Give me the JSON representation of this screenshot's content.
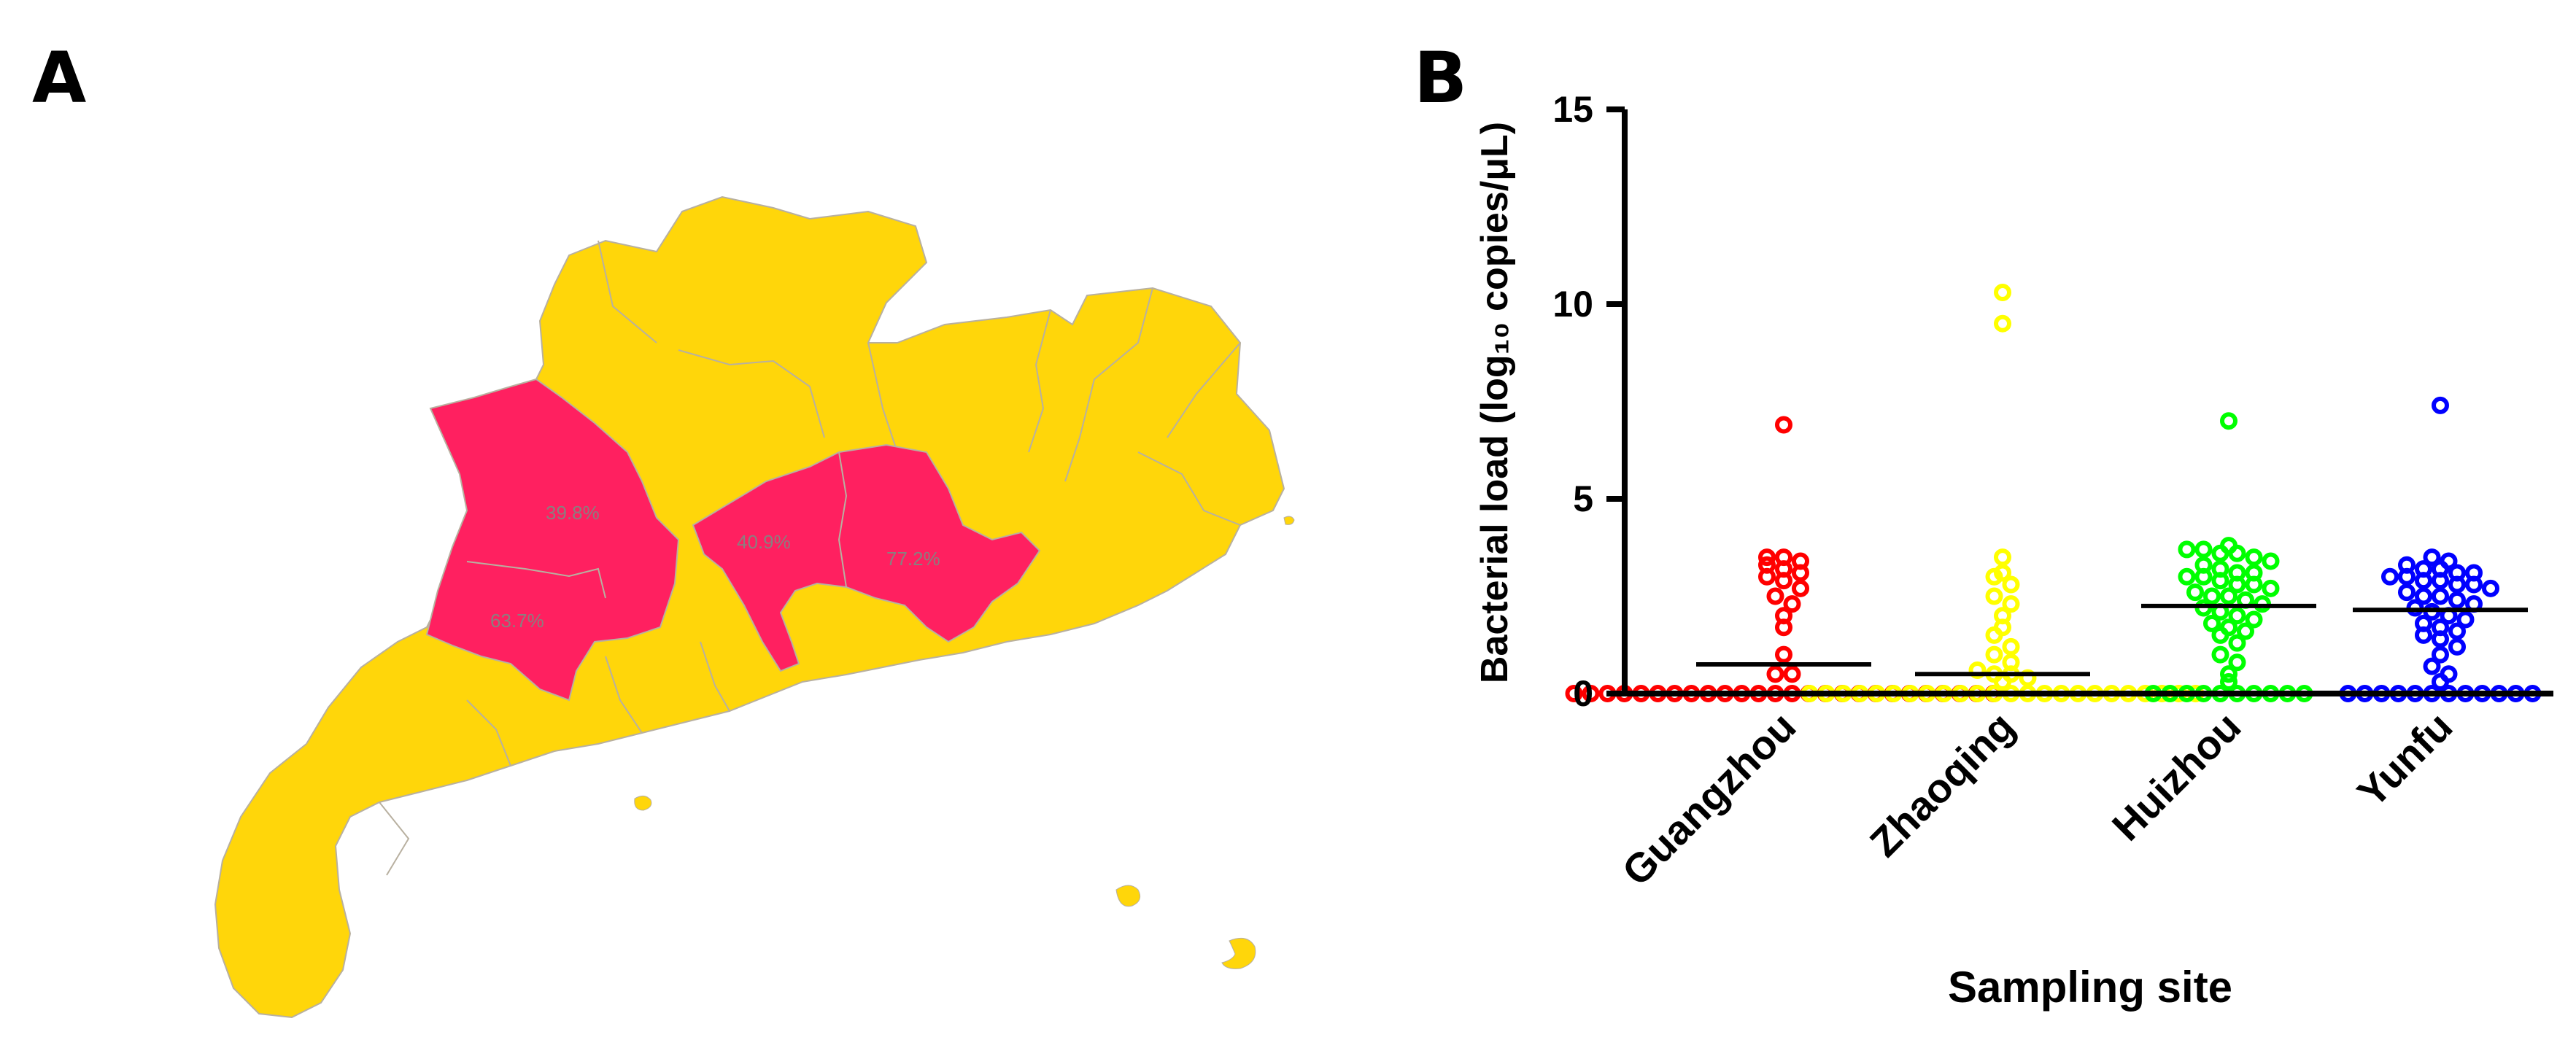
{
  "panels": {
    "a": "A",
    "b": "B"
  },
  "map": {
    "colors": {
      "high": "#ff2060",
      "low": "#ffd60a",
      "border": "#b8b0a0"
    },
    "labels": [
      "39.8%",
      "40.9%",
      "77.2%",
      "63.7%"
    ]
  },
  "chart_data": {
    "type": "scatter",
    "title": "",
    "xlabel": "Sampling site",
    "ylabel": "Bacterial load (log₁₀ copies/μL)",
    "ylim": [
      0,
      15
    ],
    "yticks": [
      0,
      5,
      10,
      15
    ],
    "categories": [
      "Guangzhou",
      "Zhaoqing",
      "Huizhou",
      "Yunfu"
    ],
    "series": [
      {
        "name": "Guangzhou",
        "color": "#ff0000",
        "mean": 0.75,
        "values": [
          6.9,
          3.5,
          3.5,
          3.4,
          3.3,
          3.2,
          3.1,
          3.0,
          2.9,
          2.7,
          2.5,
          2.3,
          2.0,
          1.7,
          1.0,
          0.5,
          0.5,
          0,
          0,
          0,
          0,
          0,
          0,
          0,
          0,
          0,
          0,
          0,
          0,
          0,
          0,
          0,
          0,
          0,
          0,
          0,
          0,
          0,
          0,
          0,
          0,
          0,
          0
        ]
      },
      {
        "name": "Zhaoqing",
        "color": "#ffff00",
        "mean": 0.5,
        "values": [
          10.3,
          9.5,
          3.5,
          3.1,
          3.0,
          2.8,
          2.5,
          2.3,
          2.0,
          1.7,
          1.5,
          1.2,
          1.0,
          0.8,
          0.6,
          0.5,
          0.5,
          0.4,
          0.3,
          0,
          0,
          0,
          0,
          0,
          0,
          0,
          0,
          0,
          0,
          0,
          0,
          0,
          0,
          0,
          0,
          0,
          0,
          0,
          0,
          0,
          0,
          0,
          0
        ]
      },
      {
        "name": "Huizhou",
        "color": "#00ff00",
        "mean": 2.25,
        "values": [
          7.0,
          3.8,
          3.7,
          3.7,
          3.6,
          3.6,
          3.5,
          3.4,
          3.3,
          3.2,
          3.1,
          3.1,
          3.0,
          3.0,
          2.9,
          2.8,
          2.8,
          2.7,
          2.6,
          2.5,
          2.5,
          2.4,
          2.3,
          2.2,
          2.1,
          2.0,
          1.9,
          1.8,
          1.7,
          1.6,
          1.5,
          1.3,
          1.0,
          0.8,
          0.5,
          0.3,
          0,
          0,
          0,
          0,
          0,
          0,
          0,
          0,
          0,
          0
        ]
      },
      {
        "name": "Yunfu",
        "color": "#0000ff",
        "mean": 2.15,
        "values": [
          7.4,
          3.5,
          3.4,
          3.3,
          3.2,
          3.2,
          3.1,
          3.1,
          3.0,
          3.0,
          2.9,
          2.9,
          2.8,
          2.8,
          2.7,
          2.6,
          2.5,
          2.5,
          2.4,
          2.3,
          2.2,
          2.1,
          2.0,
          1.9,
          1.8,
          1.7,
          1.6,
          1.5,
          1.4,
          1.2,
          1.0,
          0.7,
          0.5,
          0.3,
          0,
          0,
          0,
          0,
          0,
          0,
          0,
          0,
          0,
          0,
          0,
          0
        ]
      }
    ]
  }
}
